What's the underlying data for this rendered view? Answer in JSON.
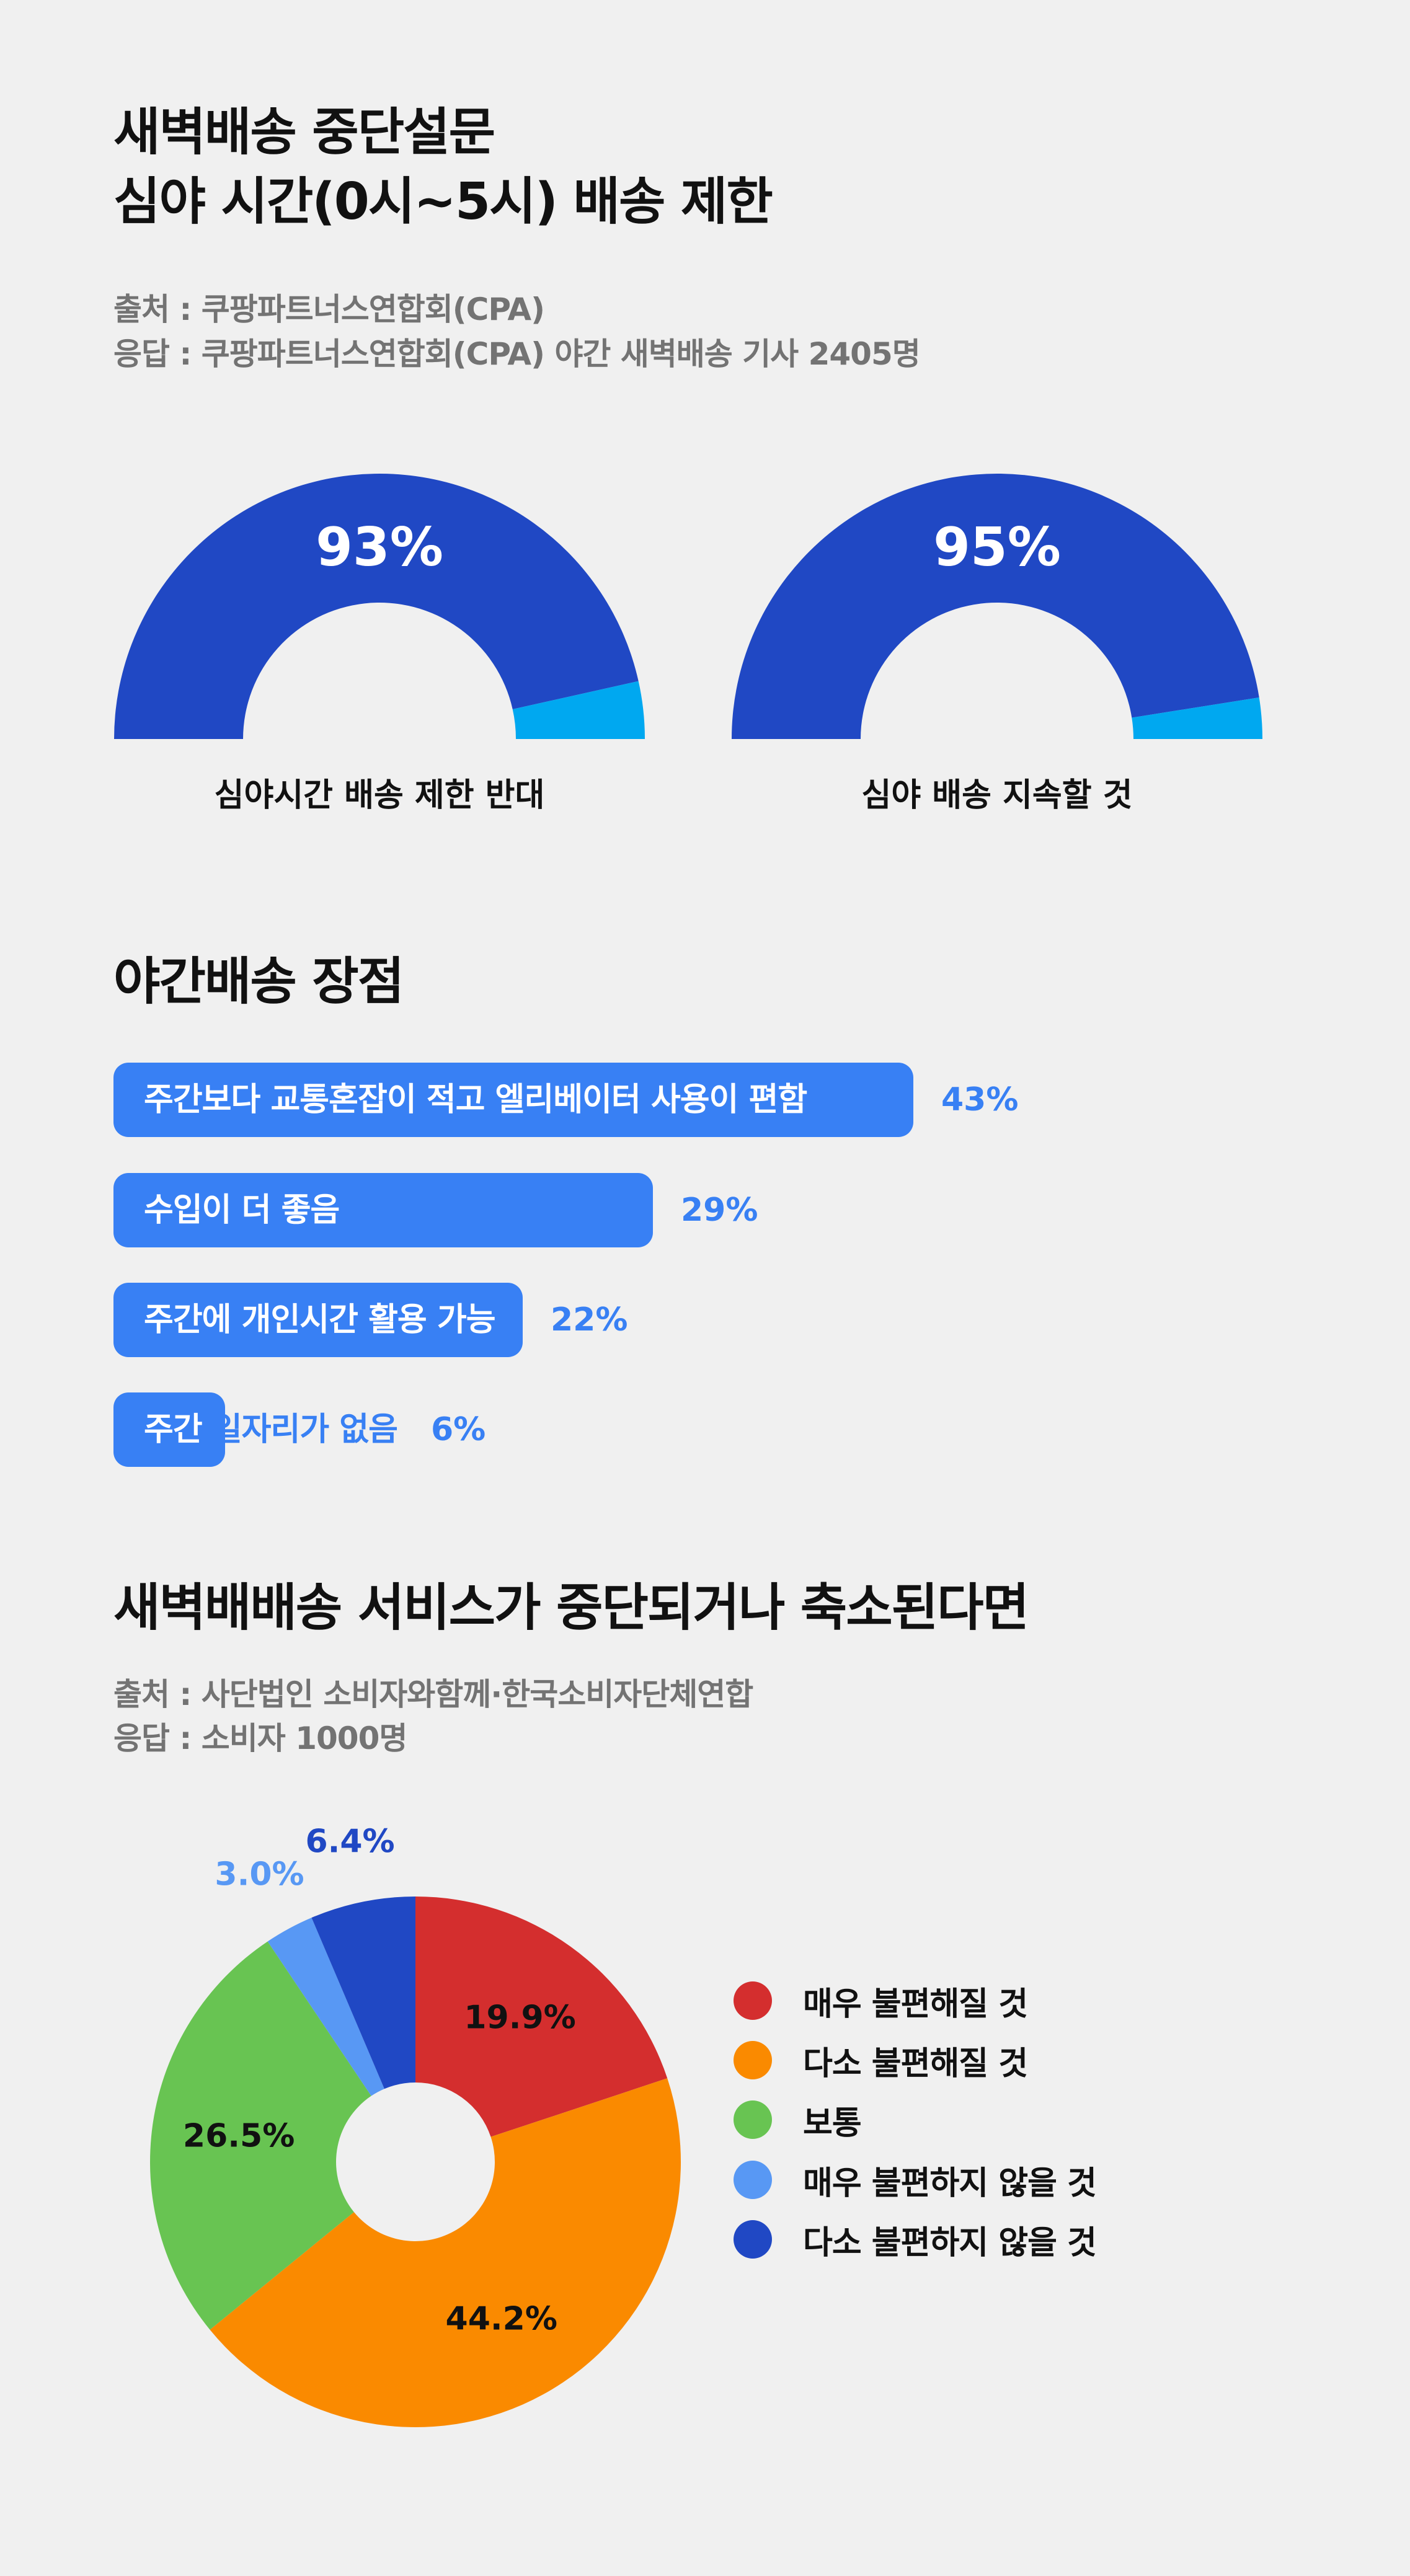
{
  "section1": {
    "title_line1": "새벽배송 중단설문",
    "title_line2": "심야 시간(0시~5시) 배송 제한",
    "source": "출처 : 쿠팡파트너스연합회(CPA)",
    "respondents": "응답 : 쿠팡파트너스연합회(CPA) 야간 새벽배송 기사 2405명"
  },
  "section2": {
    "title": "야간배송 장점"
  },
  "section3": {
    "title": "새벽배배송 서비스가 중단되거나 축소된다면",
    "source": "출처 : 사단법인 소비자와함께·한국소비자단체연합",
    "respondents": "응답 : 소비자 1000명"
  },
  "colors": {
    "gauge_main": "#2048c4",
    "gauge_rest": "#00a8f0",
    "bar": "#3880f4",
    "pie": [
      "#d42e2e",
      "#fa8a00",
      "#68c452",
      "#5898f4",
      "#2048c4"
    ]
  },
  "chart_data": [
    {
      "type": "pie",
      "style": "semi-donut gauge",
      "value": 93,
      "value_label": "93%",
      "label": "심야시간 배송 제한 반대"
    },
    {
      "type": "pie",
      "style": "semi-donut gauge",
      "value": 95,
      "value_label": "95%",
      "label": "심야 배송 지속할 것"
    },
    {
      "type": "bar",
      "orientation": "horizontal",
      "categories": [
        "주간보다 교통혼잡이 적고 엘리베이터 사용이 편함",
        "수입이 더 좋음",
        "주간에 개인시간 활용 가능",
        "주간 일자리가 없음"
      ],
      "values": [
        43,
        29,
        22,
        6
      ],
      "value_labels": [
        "43%",
        "29%",
        "22%",
        "6%"
      ]
    },
    {
      "type": "pie",
      "style": "donut",
      "categories": [
        "매우 불편해질 것",
        "다소 불편해질 것",
        "보통",
        "매우 불편하지 않을 것",
        "다소 불편하지 않을 것"
      ],
      "values": [
        19.9,
        44.2,
        26.5,
        3.0,
        6.4
      ],
      "value_labels": [
        "19.9%",
        "44.2%",
        "26.5%",
        "3.0%",
        "6.4%"
      ],
      "legend": "right"
    }
  ]
}
